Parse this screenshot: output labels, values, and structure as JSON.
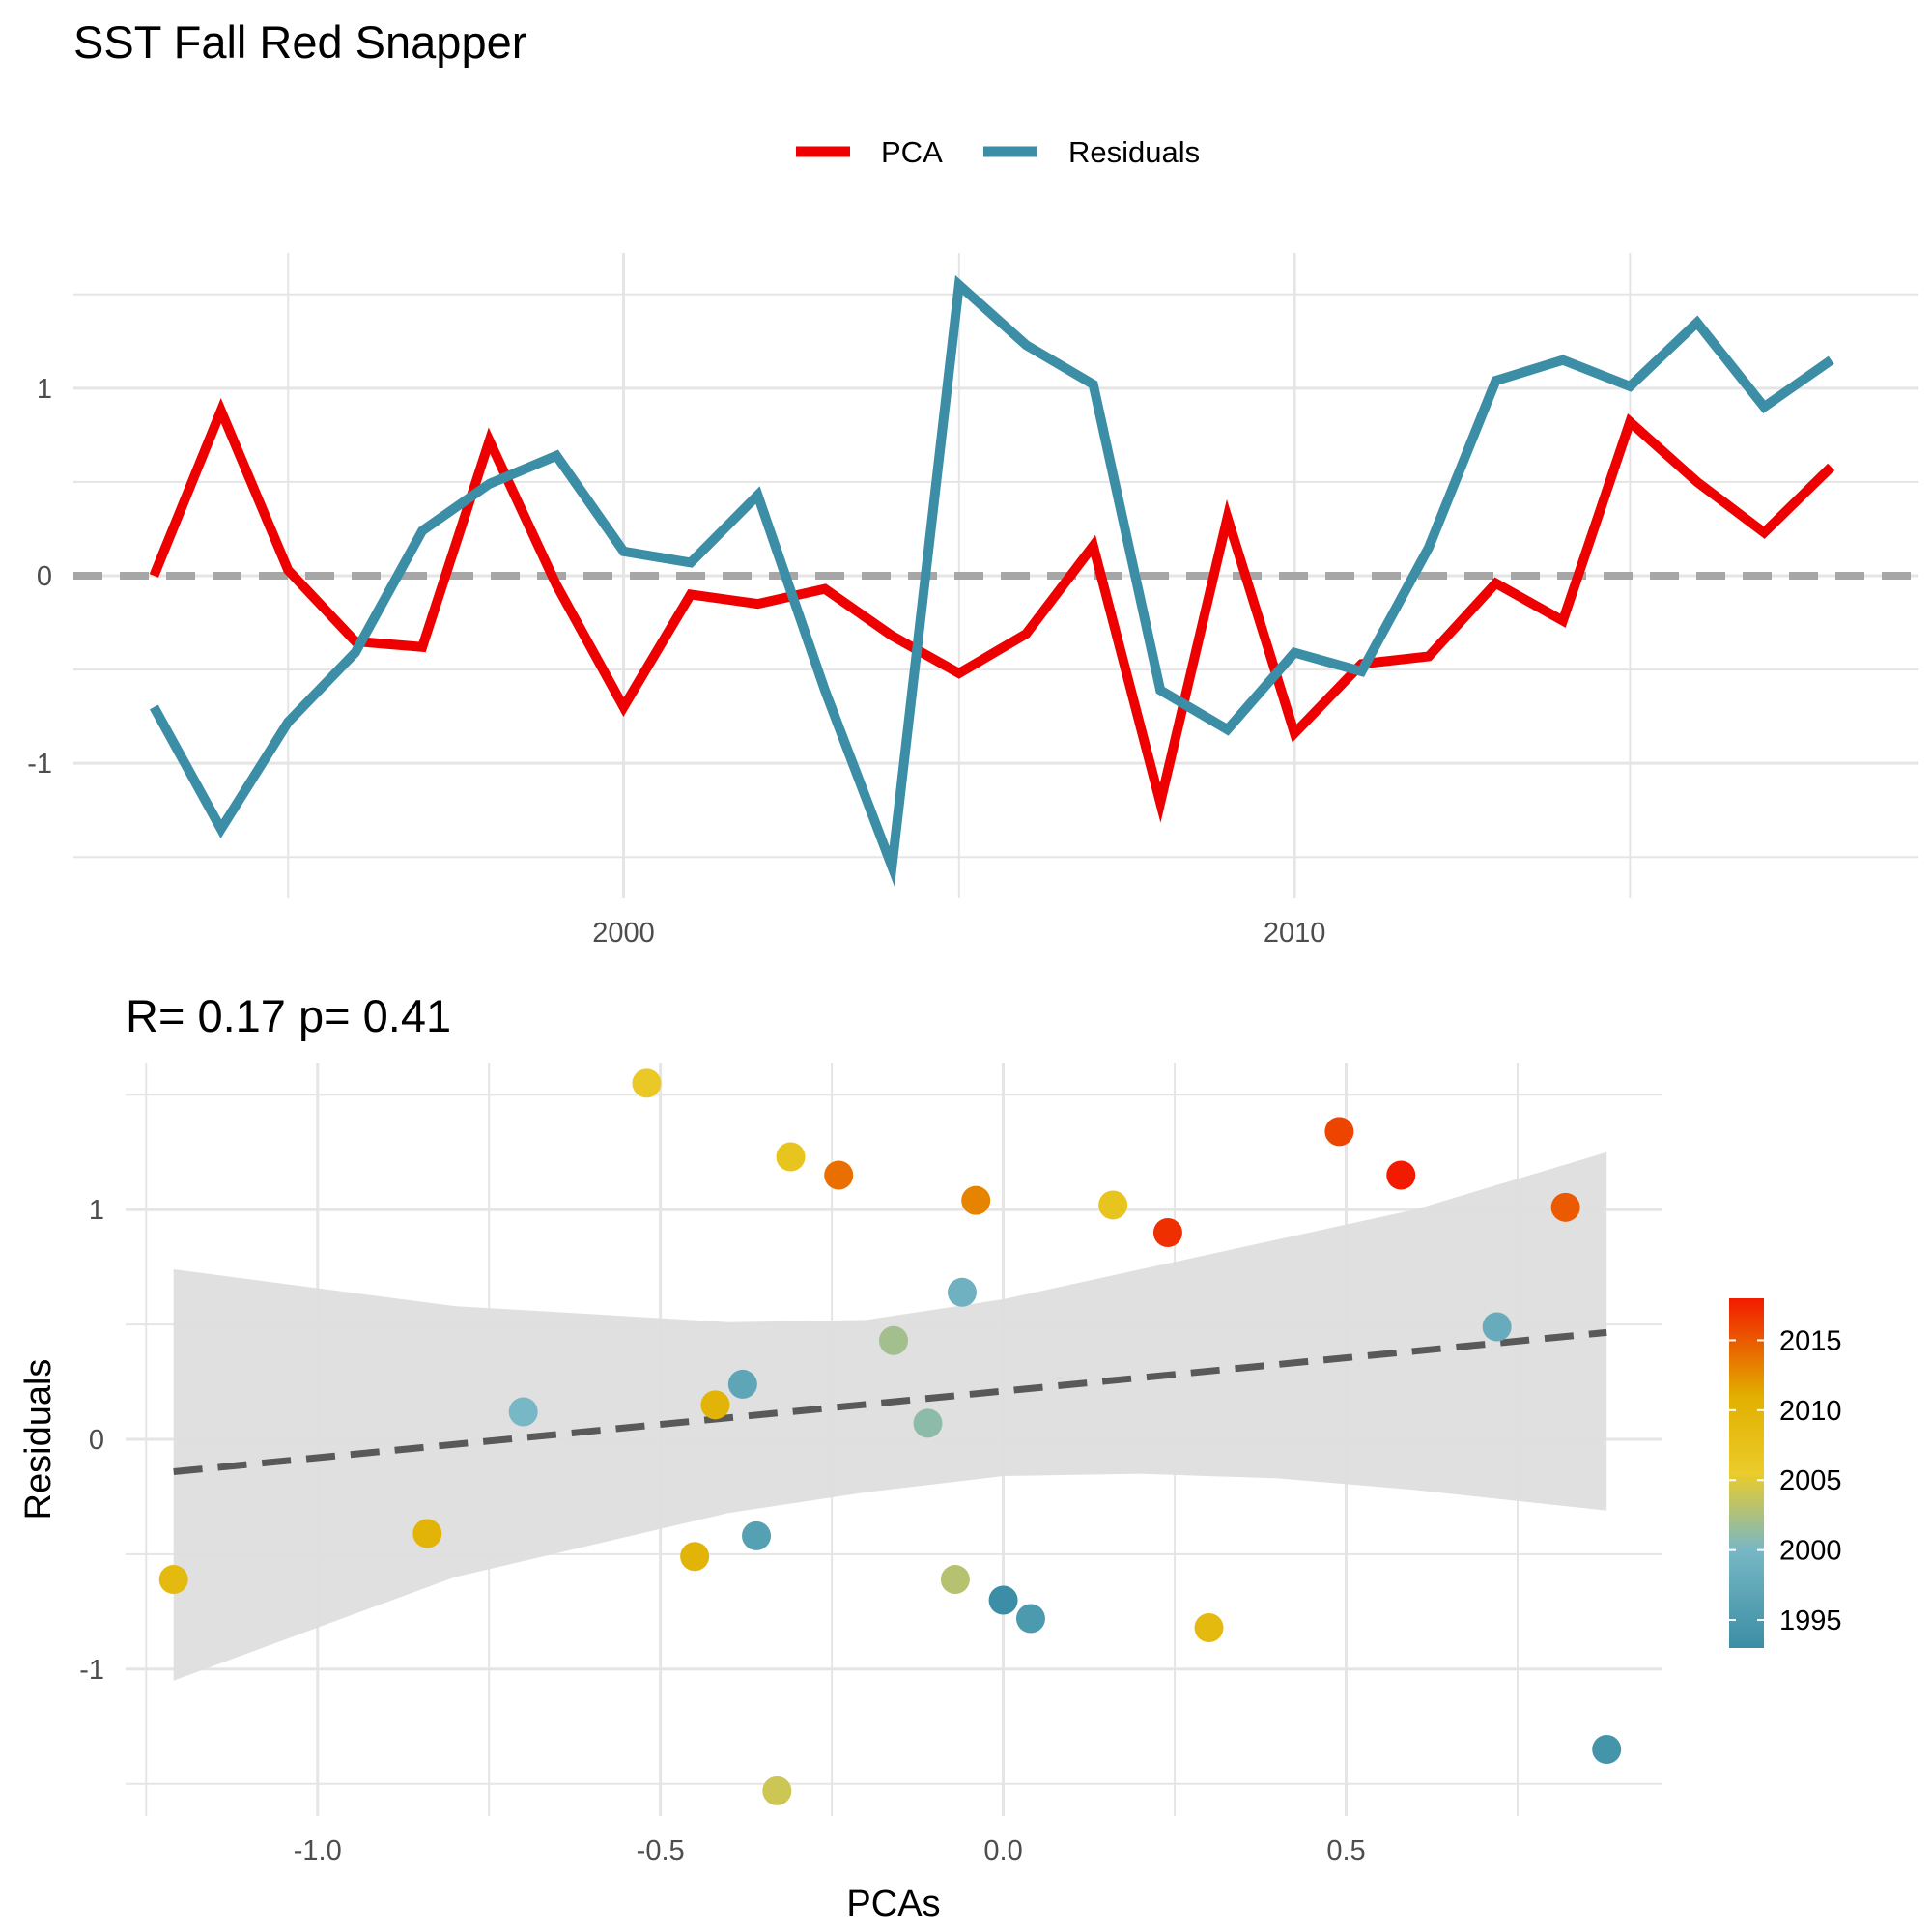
{
  "title": "SST Fall Red Snapper",
  "stats_label": "R= 0.17  p= 0.41",
  "colors": {
    "pca": "#EE0000",
    "residuals": "#3B8EA5",
    "zero_line": "#A6A6A6",
    "fit_line": "#595959",
    "ribbon": "#DEDEDE",
    "grid_major": "#E5E5E5",
    "grid_minor": "#F2F2F2",
    "year_scale": [
      "#3B8EA5",
      "#78B7C5",
      "#EBCC2A",
      "#E1AF00",
      "#F21A00"
    ]
  },
  "chart_data": [
    {
      "type": "line",
      "legend": [
        "PCA",
        "Residuals"
      ],
      "legend_position": "top",
      "xlabel": "",
      "ylabel": "",
      "xlim": [
        1991.8,
        2019.3
      ],
      "ylim": [
        -1.72,
        1.72
      ],
      "x_ticks": [
        2000,
        2010
      ],
      "y_ticks": [
        -1,
        0,
        1
      ],
      "reference_line": {
        "y": 0,
        "style": "dashed"
      },
      "grid": true,
      "x": [
        1993,
        1994,
        1995,
        1996,
        1997,
        1998,
        1999,
        2000,
        2001,
        2002,
        2003,
        2004,
        2005,
        2006,
        2007,
        2008,
        2009,
        2010,
        2011,
        2012,
        2013,
        2014,
        2015,
        2016,
        2017,
        2018
      ],
      "series": [
        {
          "name": "PCA",
          "values": [
            0.0,
            0.88,
            0.03,
            -0.35,
            -0.38,
            0.72,
            -0.05,
            -0.7,
            -0.1,
            -0.15,
            -0.07,
            -0.32,
            -0.52,
            -0.31,
            0.16,
            -1.21,
            0.31,
            -0.84,
            -0.47,
            -0.43,
            -0.04,
            -0.24,
            0.82,
            0.5,
            0.23,
            0.58
          ]
        },
        {
          "name": "Residuals",
          "values": [
            -0.7,
            -1.35,
            -0.78,
            -0.41,
            0.24,
            0.49,
            0.64,
            0.13,
            0.07,
            0.43,
            -0.61,
            -1.55,
            1.55,
            1.23,
            1.02,
            -0.61,
            -0.82,
            -0.41,
            -0.51,
            0.15,
            1.04,
            1.15,
            1.01,
            1.35,
            0.9,
            1.15
          ]
        }
      ]
    },
    {
      "type": "scatter",
      "xlabel": "PCAs",
      "ylabel": "Residuals",
      "xlim": [
        -1.28,
        0.96
      ],
      "ylim": [
        -1.64,
        1.64
      ],
      "x_ticks": [
        -1.0,
        -0.5,
        0.0,
        0.5
      ],
      "x_tick_labels": [
        "-1.0",
        "-0.5",
        "0.0",
        "0.5"
      ],
      "y_ticks": [
        -1,
        0,
        1
      ],
      "grid": true,
      "fit": {
        "slope": 0.29,
        "intercept": 0.21,
        "x_range": [
          -1.21,
          0.88
        ],
        "style": "dashed"
      },
      "ribbon": {
        "x": [
          -1.21,
          -0.8,
          -0.4,
          -0.2,
          0.0,
          0.2,
          0.4,
          0.6,
          0.88
        ],
        "upper": [
          0.74,
          0.58,
          0.51,
          0.52,
          0.61,
          0.74,
          0.87,
          1.0,
          1.25
        ],
        "lower": [
          -1.05,
          -0.6,
          -0.32,
          -0.23,
          -0.16,
          -0.15,
          -0.17,
          -0.22,
          -0.31
        ]
      },
      "colorbar": {
        "label_values": [
          1995,
          2000,
          2005,
          2010,
          2015
        ],
        "range": [
          1993,
          2018
        ]
      },
      "points": [
        {
          "x": 0.0,
          "y": -0.7,
          "year": 1993
        },
        {
          "x": 0.88,
          "y": -1.35,
          "year": 1994
        },
        {
          "x": 0.04,
          "y": -0.78,
          "year": 1995
        },
        {
          "x": -0.36,
          "y": -0.42,
          "year": 1996
        },
        {
          "x": -0.38,
          "y": 0.24,
          "year": 1997
        },
        {
          "x": 0.72,
          "y": 0.49,
          "year": 1998
        },
        {
          "x": -0.06,
          "y": 0.64,
          "year": 1999
        },
        {
          "x": -0.7,
          "y": 0.12,
          "year": 2000
        },
        {
          "x": -0.11,
          "y": 0.07,
          "year": 2001
        },
        {
          "x": -0.16,
          "y": 0.43,
          "year": 2002
        },
        {
          "x": -0.07,
          "y": -0.61,
          "year": 2003
        },
        {
          "x": -0.33,
          "y": -1.53,
          "year": 2004
        },
        {
          "x": -0.52,
          "y": 1.55,
          "year": 2006
        },
        {
          "x": -0.31,
          "y": 1.23,
          "year": 2007
        },
        {
          "x": 0.16,
          "y": 1.02,
          "year": 2007
        },
        {
          "x": -1.21,
          "y": -0.61,
          "year": 2009
        },
        {
          "x": 0.3,
          "y": -0.82,
          "year": 2009
        },
        {
          "x": -0.84,
          "y": -0.41,
          "year": 2010
        },
        {
          "x": -0.45,
          "y": -0.51,
          "year": 2010
        },
        {
          "x": -0.42,
          "y": 0.15,
          "year": 2010
        },
        {
          "x": -0.04,
          "y": 1.04,
          "year": 2013
        },
        {
          "x": -0.24,
          "y": 1.15,
          "year": 2014
        },
        {
          "x": 0.82,
          "y": 1.01,
          "year": 2015
        },
        {
          "x": 0.49,
          "y": 1.34,
          "year": 2016
        },
        {
          "x": 0.24,
          "y": 0.9,
          "year": 2017
        },
        {
          "x": 0.58,
          "y": 1.15,
          "year": 2018
        }
      ]
    }
  ]
}
